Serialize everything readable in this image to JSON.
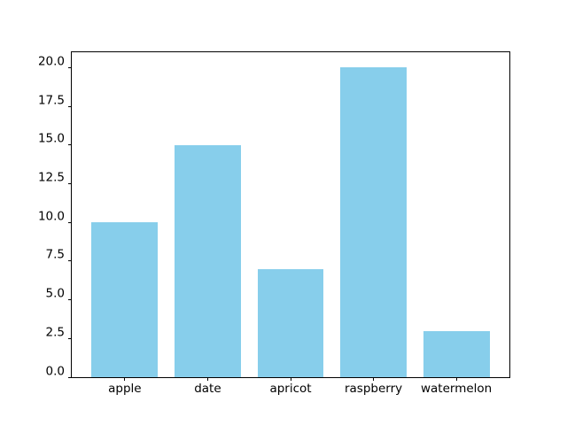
{
  "figure": {
    "background_color": "#ffffff",
    "spine_color": "#000000",
    "tick_label_color": "#000000"
  },
  "chart_data": {
    "type": "bar",
    "title": "",
    "xlabel": "",
    "ylabel": "",
    "categories": [
      "apple",
      "date",
      "apricot",
      "raspberry",
      "watermelon"
    ],
    "values": [
      10,
      15,
      7,
      20,
      3
    ],
    "bar_color": "#87CEEB",
    "bar_width_ratio": 0.8,
    "ylim": [
      0,
      21
    ],
    "xlim": [
      -0.64,
      4.64
    ],
    "yticks": [
      0.0,
      2.5,
      5.0,
      7.5,
      10.0,
      12.5,
      15.0,
      17.5,
      20.0
    ],
    "ytick_labels": [
      "0.0",
      "2.5",
      "5.0",
      "7.5",
      "10.0",
      "12.5",
      "15.0",
      "17.5",
      "20.0"
    ],
    "grid": false,
    "legend": null
  }
}
